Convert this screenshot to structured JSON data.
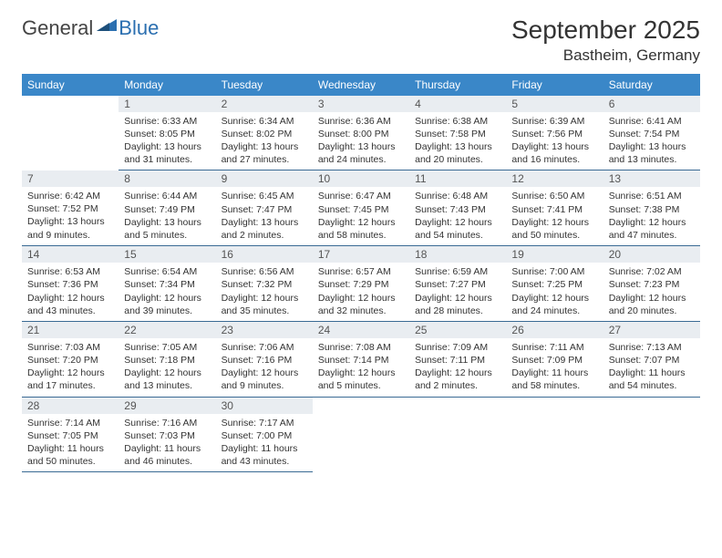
{
  "logo": {
    "text1": "General",
    "text2": "Blue"
  },
  "title": "September 2025",
  "location": "Bastheim, Germany",
  "colors": {
    "header_bg": "#3a87c8",
    "header_text": "#ffffff",
    "daynum_bg": "#e9edf1",
    "daynum_text": "#555555",
    "cell_border": "#3a6a94",
    "body_text": "#333333",
    "logo_blue": "#2b6fb0"
  },
  "day_headers": [
    "Sunday",
    "Monday",
    "Tuesday",
    "Wednesday",
    "Thursday",
    "Friday",
    "Saturday"
  ],
  "weeks": [
    [
      null,
      {
        "n": "1",
        "sr": "Sunrise: 6:33 AM",
        "ss": "Sunset: 8:05 PM",
        "d1": "Daylight: 13 hours",
        "d2": "and 31 minutes."
      },
      {
        "n": "2",
        "sr": "Sunrise: 6:34 AM",
        "ss": "Sunset: 8:02 PM",
        "d1": "Daylight: 13 hours",
        "d2": "and 27 minutes."
      },
      {
        "n": "3",
        "sr": "Sunrise: 6:36 AM",
        "ss": "Sunset: 8:00 PM",
        "d1": "Daylight: 13 hours",
        "d2": "and 24 minutes."
      },
      {
        "n": "4",
        "sr": "Sunrise: 6:38 AM",
        "ss": "Sunset: 7:58 PM",
        "d1": "Daylight: 13 hours",
        "d2": "and 20 minutes."
      },
      {
        "n": "5",
        "sr": "Sunrise: 6:39 AM",
        "ss": "Sunset: 7:56 PM",
        "d1": "Daylight: 13 hours",
        "d2": "and 16 minutes."
      },
      {
        "n": "6",
        "sr": "Sunrise: 6:41 AM",
        "ss": "Sunset: 7:54 PM",
        "d1": "Daylight: 13 hours",
        "d2": "and 13 minutes."
      }
    ],
    [
      {
        "n": "7",
        "sr": "Sunrise: 6:42 AM",
        "ss": "Sunset: 7:52 PM",
        "d1": "Daylight: 13 hours",
        "d2": "and 9 minutes."
      },
      {
        "n": "8",
        "sr": "Sunrise: 6:44 AM",
        "ss": "Sunset: 7:49 PM",
        "d1": "Daylight: 13 hours",
        "d2": "and 5 minutes."
      },
      {
        "n": "9",
        "sr": "Sunrise: 6:45 AM",
        "ss": "Sunset: 7:47 PM",
        "d1": "Daylight: 13 hours",
        "d2": "and 2 minutes."
      },
      {
        "n": "10",
        "sr": "Sunrise: 6:47 AM",
        "ss": "Sunset: 7:45 PM",
        "d1": "Daylight: 12 hours",
        "d2": "and 58 minutes."
      },
      {
        "n": "11",
        "sr": "Sunrise: 6:48 AM",
        "ss": "Sunset: 7:43 PM",
        "d1": "Daylight: 12 hours",
        "d2": "and 54 minutes."
      },
      {
        "n": "12",
        "sr": "Sunrise: 6:50 AM",
        "ss": "Sunset: 7:41 PM",
        "d1": "Daylight: 12 hours",
        "d2": "and 50 minutes."
      },
      {
        "n": "13",
        "sr": "Sunrise: 6:51 AM",
        "ss": "Sunset: 7:38 PM",
        "d1": "Daylight: 12 hours",
        "d2": "and 47 minutes."
      }
    ],
    [
      {
        "n": "14",
        "sr": "Sunrise: 6:53 AM",
        "ss": "Sunset: 7:36 PM",
        "d1": "Daylight: 12 hours",
        "d2": "and 43 minutes."
      },
      {
        "n": "15",
        "sr": "Sunrise: 6:54 AM",
        "ss": "Sunset: 7:34 PM",
        "d1": "Daylight: 12 hours",
        "d2": "and 39 minutes."
      },
      {
        "n": "16",
        "sr": "Sunrise: 6:56 AM",
        "ss": "Sunset: 7:32 PM",
        "d1": "Daylight: 12 hours",
        "d2": "and 35 minutes."
      },
      {
        "n": "17",
        "sr": "Sunrise: 6:57 AM",
        "ss": "Sunset: 7:29 PM",
        "d1": "Daylight: 12 hours",
        "d2": "and 32 minutes."
      },
      {
        "n": "18",
        "sr": "Sunrise: 6:59 AM",
        "ss": "Sunset: 7:27 PM",
        "d1": "Daylight: 12 hours",
        "d2": "and 28 minutes."
      },
      {
        "n": "19",
        "sr": "Sunrise: 7:00 AM",
        "ss": "Sunset: 7:25 PM",
        "d1": "Daylight: 12 hours",
        "d2": "and 24 minutes."
      },
      {
        "n": "20",
        "sr": "Sunrise: 7:02 AM",
        "ss": "Sunset: 7:23 PM",
        "d1": "Daylight: 12 hours",
        "d2": "and 20 minutes."
      }
    ],
    [
      {
        "n": "21",
        "sr": "Sunrise: 7:03 AM",
        "ss": "Sunset: 7:20 PM",
        "d1": "Daylight: 12 hours",
        "d2": "and 17 minutes."
      },
      {
        "n": "22",
        "sr": "Sunrise: 7:05 AM",
        "ss": "Sunset: 7:18 PM",
        "d1": "Daylight: 12 hours",
        "d2": "and 13 minutes."
      },
      {
        "n": "23",
        "sr": "Sunrise: 7:06 AM",
        "ss": "Sunset: 7:16 PM",
        "d1": "Daylight: 12 hours",
        "d2": "and 9 minutes."
      },
      {
        "n": "24",
        "sr": "Sunrise: 7:08 AM",
        "ss": "Sunset: 7:14 PM",
        "d1": "Daylight: 12 hours",
        "d2": "and 5 minutes."
      },
      {
        "n": "25",
        "sr": "Sunrise: 7:09 AM",
        "ss": "Sunset: 7:11 PM",
        "d1": "Daylight: 12 hours",
        "d2": "and 2 minutes."
      },
      {
        "n": "26",
        "sr": "Sunrise: 7:11 AM",
        "ss": "Sunset: 7:09 PM",
        "d1": "Daylight: 11 hours",
        "d2": "and 58 minutes."
      },
      {
        "n": "27",
        "sr": "Sunrise: 7:13 AM",
        "ss": "Sunset: 7:07 PM",
        "d1": "Daylight: 11 hours",
        "d2": "and 54 minutes."
      }
    ],
    [
      {
        "n": "28",
        "sr": "Sunrise: 7:14 AM",
        "ss": "Sunset: 7:05 PM",
        "d1": "Daylight: 11 hours",
        "d2": "and 50 minutes."
      },
      {
        "n": "29",
        "sr": "Sunrise: 7:16 AM",
        "ss": "Sunset: 7:03 PM",
        "d1": "Daylight: 11 hours",
        "d2": "and 46 minutes."
      },
      {
        "n": "30",
        "sr": "Sunrise: 7:17 AM",
        "ss": "Sunset: 7:00 PM",
        "d1": "Daylight: 11 hours",
        "d2": "and 43 minutes."
      },
      null,
      null,
      null,
      null
    ]
  ]
}
